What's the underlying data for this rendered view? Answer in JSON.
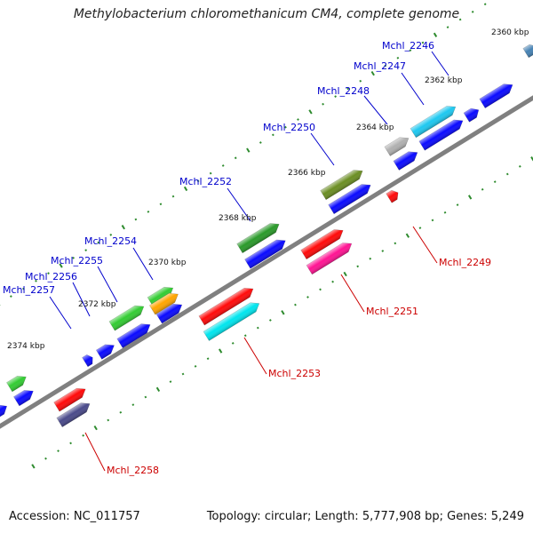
{
  "title": "Methylobacterium chloromethanicum CM4, complete genome",
  "accession_label": "Accession:",
  "accession": "NC_011757",
  "topology_label": "Topology:",
  "topology": "circular",
  "length_label": "Length:",
  "length": "5,777,908 bp",
  "genes_label": "Genes:",
  "genes": "5,249",
  "colors": {
    "backbone": "#808080",
    "tick": "#2e8b2e",
    "label_forward": "#0000cc",
    "label_reverse": "#cc0000",
    "leader_forward": "#0000cc",
    "leader_reverse": "#cc0000"
  },
  "kbp_marks": [
    "2360 kbp",
    "2362 kbp",
    "2364 kbp",
    "2366 kbp",
    "2368 kbp",
    "2370 kbp",
    "2372 kbp",
    "2374 kbp"
  ],
  "gene_labels": [
    {
      "name": "Mchl_2246",
      "strand": "forward"
    },
    {
      "name": "Mchl_2247",
      "strand": "forward"
    },
    {
      "name": "Mchl_2248",
      "strand": "forward"
    },
    {
      "name": "Mchl_2249",
      "strand": "reverse"
    },
    {
      "name": "Mchl_2250",
      "strand": "forward"
    },
    {
      "name": "Mchl_2251",
      "strand": "reverse"
    },
    {
      "name": "Mchl_2252",
      "strand": "forward"
    },
    {
      "name": "Mchl_2253",
      "strand": "reverse"
    },
    {
      "name": "Mchl_2254",
      "strand": "forward"
    },
    {
      "name": "Mchl_2255",
      "strand": "forward"
    },
    {
      "name": "Mchl_2256",
      "strand": "forward"
    },
    {
      "name": "Mchl_2257",
      "strand": "forward"
    },
    {
      "name": "Mchl_2258",
      "strand": "reverse"
    }
  ],
  "feature_colors": {
    "blue": "#0a0aff",
    "red": "#ff0a0a",
    "green": "#33cc33",
    "darkgreen": "#2a9a2a",
    "olive": "#6b8e23",
    "cyan": "#00e5ee",
    "skyblue": "#1ec8f0",
    "magenta": "#ff1493",
    "orange": "#ffa500",
    "gray": "#b0b0b0",
    "slate": "#4a4a8a",
    "steel": "#4682b4"
  }
}
